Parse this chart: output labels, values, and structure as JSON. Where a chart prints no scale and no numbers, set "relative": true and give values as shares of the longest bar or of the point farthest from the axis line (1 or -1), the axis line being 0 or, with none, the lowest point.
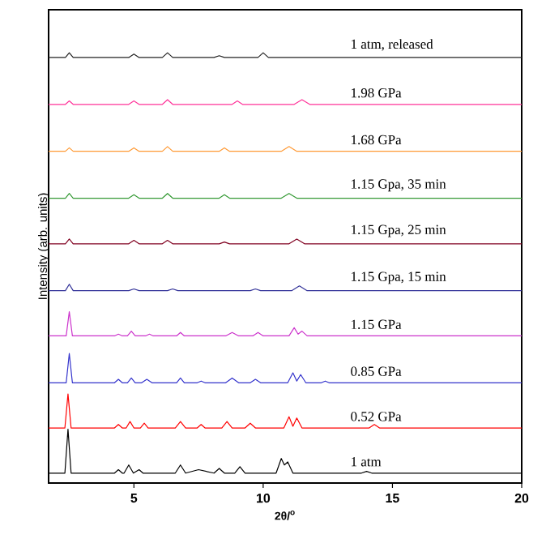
{
  "chart_data": {
    "type": "line",
    "relative": true,
    "xlabel": "2θ/$^{o}$",
    "ylabel": "Intensity (arb. units)",
    "xlim": [
      1.7,
      20
    ],
    "xticks": [
      5,
      10,
      15,
      20
    ],
    "series": [
      {
        "name": "1 atm",
        "color": "#000000",
        "x": [
          1.7,
          2.33,
          2.45,
          2.57,
          4.25,
          4.4,
          4.55,
          4.62,
          4.8,
          4.98,
          5.2,
          5.35,
          6.6,
          6.8,
          7.0,
          7.5,
          8.1,
          8.3,
          8.5,
          8.9,
          9.1,
          9.3,
          10.5,
          10.7,
          10.82,
          10.95,
          11.15,
          13.8,
          14.0,
          14.2,
          20
        ],
        "values": [
          0.023,
          0.023,
          0.125,
          0.023,
          0.023,
          0.031,
          0.023,
          0.023,
          0.042,
          0.023,
          0.031,
          0.023,
          0.023,
          0.042,
          0.023,
          0.031,
          0.023,
          0.034,
          0.023,
          0.023,
          0.038,
          0.023,
          0.023,
          0.057,
          0.042,
          0.049,
          0.023,
          0.023,
          0.027,
          0.023,
          0.023
        ]
      },
      {
        "name": "0.52 GPa",
        "color": "#ff0000",
        "x": [
          1.7,
          2.33,
          2.45,
          2.57,
          4.25,
          4.4,
          4.55,
          4.7,
          4.85,
          5.0,
          5.25,
          5.4,
          5.55,
          6.6,
          6.8,
          7.0,
          7.45,
          7.6,
          7.75,
          8.4,
          8.6,
          8.8,
          9.3,
          9.5,
          9.7,
          10.8,
          11.0,
          11.15,
          11.3,
          11.5,
          14.1,
          14.3,
          14.5,
          20
        ],
        "values": [
          0.128,
          0.128,
          0.207,
          0.128,
          0.128,
          0.136,
          0.128,
          0.128,
          0.143,
          0.128,
          0.128,
          0.139,
          0.128,
          0.128,
          0.143,
          0.128,
          0.128,
          0.136,
          0.128,
          0.128,
          0.143,
          0.128,
          0.128,
          0.139,
          0.128,
          0.128,
          0.154,
          0.132,
          0.151,
          0.128,
          0.128,
          0.136,
          0.128,
          0.128
        ]
      },
      {
        "name": "0.85 GPa",
        "color": "#3333cc",
        "x": [
          1.7,
          2.38,
          2.5,
          2.62,
          4.25,
          4.4,
          4.55,
          4.75,
          4.9,
          5.05,
          5.3,
          5.5,
          5.7,
          6.65,
          6.8,
          6.95,
          7.45,
          7.6,
          7.75,
          8.55,
          8.8,
          9.05,
          9.5,
          9.7,
          9.9,
          10.95,
          11.15,
          11.3,
          11.45,
          11.65,
          12.25,
          12.4,
          12.55,
          20
        ],
        "values": [
          0.233,
          0.233,
          0.301,
          0.233,
          0.233,
          0.241,
          0.233,
          0.233,
          0.244,
          0.233,
          0.233,
          0.241,
          0.233,
          0.233,
          0.244,
          0.233,
          0.233,
          0.237,
          0.233,
          0.233,
          0.244,
          0.233,
          0.233,
          0.241,
          0.233,
          0.233,
          0.256,
          0.237,
          0.252,
          0.233,
          0.233,
          0.237,
          0.233,
          0.233
        ]
      },
      {
        "name": "1.15 GPa",
        "color": "#cc33cc",
        "x": [
          1.7,
          2.38,
          2.5,
          2.62,
          4.25,
          4.4,
          4.55,
          4.75,
          4.9,
          5.05,
          5.45,
          5.6,
          5.75,
          6.65,
          6.8,
          6.95,
          8.55,
          8.8,
          9.05,
          9.6,
          9.8,
          10.0,
          11.0,
          11.2,
          11.35,
          11.5,
          11.7,
          20
        ],
        "values": [
          0.342,
          0.342,
          0.398,
          0.342,
          0.342,
          0.346,
          0.342,
          0.342,
          0.353,
          0.342,
          0.342,
          0.346,
          0.342,
          0.342,
          0.35,
          0.342,
          0.342,
          0.35,
          0.342,
          0.342,
          0.35,
          0.342,
          0.342,
          0.361,
          0.346,
          0.353,
          0.342,
          0.342
        ]
      },
      {
        "name": "1.15 Gpa, 15 min",
        "color": "#333399",
        "x": [
          1.7,
          2.35,
          2.5,
          2.65,
          4.8,
          5.0,
          5.2,
          6.3,
          6.5,
          6.7,
          9.5,
          9.7,
          9.9,
          11.1,
          11.4,
          11.7,
          20
        ],
        "values": [
          0.447,
          0.447,
          0.462,
          0.447,
          0.447,
          0.451,
          0.447,
          0.447,
          0.451,
          0.447,
          0.447,
          0.451,
          0.447,
          0.447,
          0.458,
          0.447,
          0.447
        ]
      },
      {
        "name": "1.15 Gpa, 25 min",
        "color": "#800020",
        "x": [
          1.7,
          2.35,
          2.5,
          2.65,
          4.8,
          5.0,
          5.2,
          6.1,
          6.3,
          6.5,
          8.3,
          8.5,
          8.7,
          11.0,
          11.3,
          11.6,
          20
        ],
        "values": [
          0.556,
          0.556,
          0.567,
          0.556,
          0.556,
          0.564,
          0.556,
          0.556,
          0.564,
          0.556,
          0.556,
          0.56,
          0.556,
          0.556,
          0.567,
          0.556,
          0.556
        ]
      },
      {
        "name": "1.15 Gpa, 35 min",
        "color": "#339933",
        "x": [
          1.7,
          2.35,
          2.5,
          2.65,
          4.8,
          5.0,
          5.2,
          6.1,
          6.3,
          6.5,
          8.3,
          8.5,
          8.7,
          10.7,
          11.0,
          11.3,
          20
        ],
        "values": [
          0.662,
          0.662,
          0.673,
          0.662,
          0.662,
          0.67,
          0.662,
          0.662,
          0.673,
          0.662,
          0.662,
          0.67,
          0.662,
          0.662,
          0.673,
          0.662,
          0.662
        ]
      },
      {
        "name": "1.68 GPa",
        "color": "#ff9933",
        "x": [
          1.7,
          2.35,
          2.5,
          2.65,
          4.8,
          5.0,
          5.2,
          6.1,
          6.3,
          6.5,
          8.3,
          8.5,
          8.7,
          10.7,
          11.0,
          11.3,
          20
        ],
        "values": [
          0.771,
          0.771,
          0.779,
          0.771,
          0.771,
          0.779,
          0.771,
          0.771,
          0.782,
          0.771,
          0.771,
          0.779,
          0.771,
          0.771,
          0.782,
          0.771,
          0.771
        ]
      },
      {
        "name": "1.98 GPa",
        "color": "#ff3399",
        "x": [
          1.7,
          2.35,
          2.5,
          2.65,
          4.8,
          5.0,
          5.2,
          6.1,
          6.3,
          6.5,
          8.8,
          9.0,
          9.2,
          11.2,
          11.5,
          11.8,
          20
        ],
        "values": [
          0.88,
          0.88,
          0.888,
          0.88,
          0.88,
          0.888,
          0.88,
          0.88,
          0.891,
          0.88,
          0.88,
          0.888,
          0.88,
          0.88,
          0.891,
          0.88,
          0.88
        ]
      },
      {
        "name": "1 atm, released",
        "color": "#222222",
        "x": [
          1.7,
          2.35,
          2.5,
          2.65,
          4.8,
          5.0,
          5.2,
          6.1,
          6.3,
          6.5,
          8.1,
          8.3,
          8.5,
          9.8,
          10.0,
          10.2,
          20
        ],
        "values": [
          0.989,
          0.989,
          1.0,
          0.989,
          0.989,
          0.997,
          0.989,
          0.989,
          1.0,
          0.989,
          0.989,
          0.993,
          0.989,
          0.989,
          1.0,
          0.989,
          0.989
        ]
      }
    ]
  }
}
